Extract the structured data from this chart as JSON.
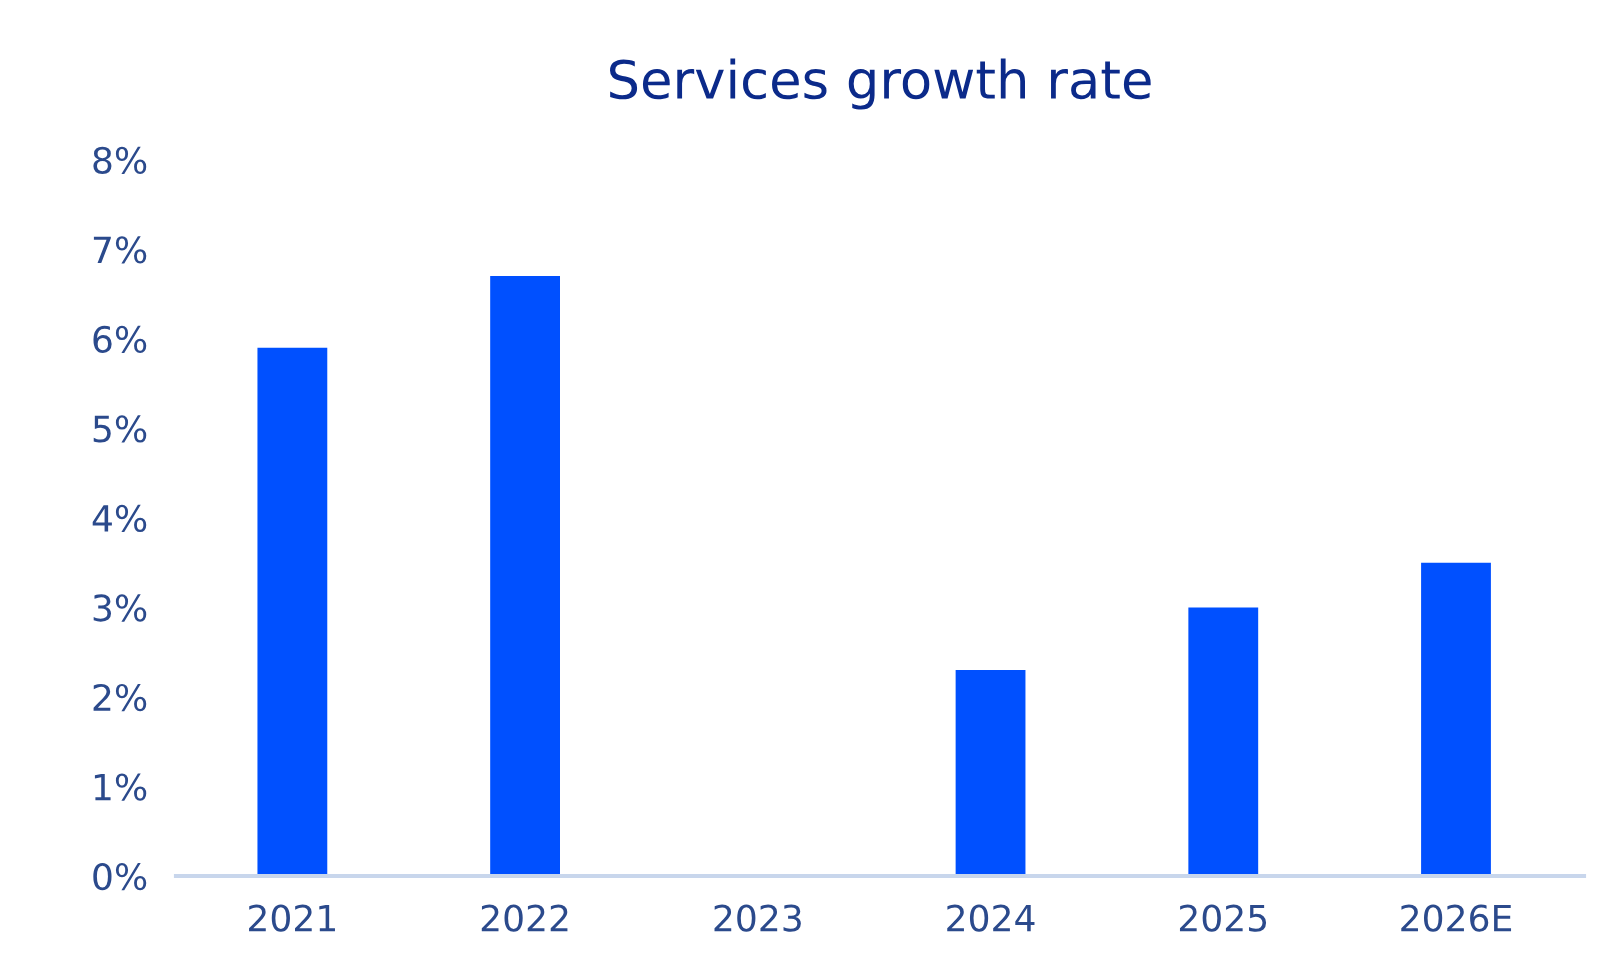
{
  "chart_data": {
    "type": "bar",
    "title": "Services growth rate",
    "categories": [
      "2021",
      "2022",
      "2023",
      "2024",
      "2025",
      "2026E"
    ],
    "values": [
      5.9,
      6.7,
      0,
      2.3,
      3.0,
      3.5
    ],
    "color": "#0050ff",
    "ylim": [
      0,
      8
    ],
    "yticks": [
      {
        "value": 0,
        "label": "0%"
      },
      {
        "value": 1,
        "label": "1%"
      },
      {
        "value": 2,
        "label": "2%"
      },
      {
        "value": 3,
        "label": "3%"
      },
      {
        "value": 4,
        "label": "4%"
      },
      {
        "value": 5,
        "label": "5%"
      },
      {
        "value": 6,
        "label": "6%"
      },
      {
        "value": 7,
        "label": "7%"
      },
      {
        "value": 8,
        "label": "8%"
      }
    ],
    "grid": false,
    "legend": false
  }
}
